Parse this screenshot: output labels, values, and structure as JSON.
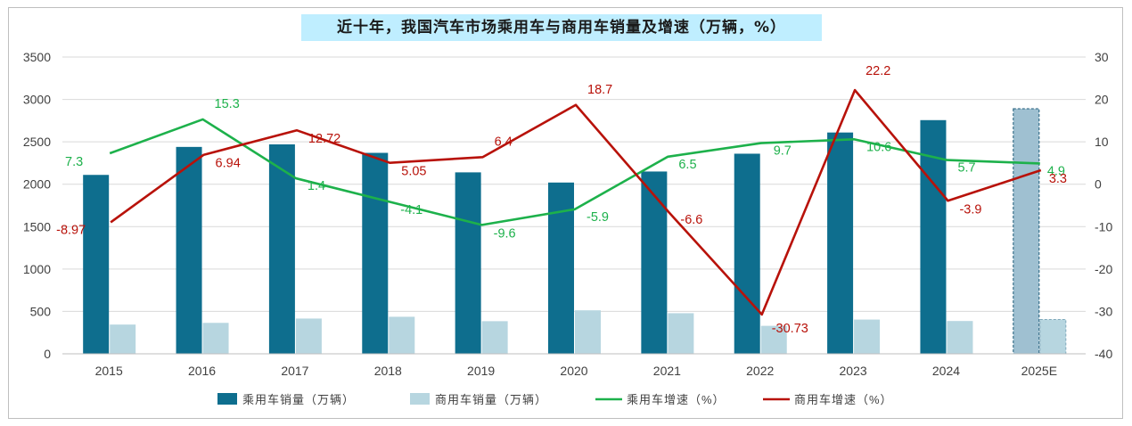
{
  "chart_data": {
    "type": "bar",
    "title": "近十年，我国汽车市场乘用车与商用车销量及增速（万辆，%）",
    "categories": [
      "2015",
      "2016",
      "2017",
      "2018",
      "2019",
      "2020",
      "2021",
      "2022",
      "2023",
      "2024",
      "2025E"
    ],
    "left_axis": {
      "min": 0,
      "max": 3500,
      "step": 500,
      "ticks": [
        "0",
        "500",
        "1000",
        "1500",
        "2000",
        "2500",
        "3000",
        "3500"
      ]
    },
    "right_axis": {
      "min": -40,
      "max": 30,
      "step": 10,
      "ticks": [
        "-40",
        "-30",
        "-20",
        "-10",
        "0",
        "10",
        "20",
        "30"
      ]
    },
    "series": [
      {
        "name": "乘用车销量（万辆）",
        "type": "bar",
        "axis": "left",
        "color": "#0e6e8e",
        "values": [
          2110,
          2440,
          2470,
          2370,
          2140,
          2020,
          2150,
          2360,
          2610,
          2756,
          2890
        ]
      },
      {
        "name": "商用车销量（万辆）",
        "type": "bar",
        "axis": "left",
        "color": "#b7d6e0",
        "values": [
          345,
          365,
          416,
          437,
          385,
          513,
          479,
          330,
          404,
          387,
          405
        ]
      },
      {
        "name": "乘用车增速（%）",
        "type": "line",
        "axis": "right",
        "color": "#1db14b",
        "values": [
          7.3,
          15.3,
          1.4,
          -4.1,
          -9.6,
          -5.9,
          6.5,
          9.7,
          10.6,
          5.7,
          4.9
        ],
        "labels": [
          "7.3",
          "15.3",
          "1.4",
          "-4.1",
          "-9.6",
          "-5.9",
          "6.5",
          "9.7",
          "10.6",
          "5.7",
          "4.9"
        ]
      },
      {
        "name": "商用车增速（%）",
        "type": "line",
        "axis": "right",
        "color": "#b8120a",
        "values": [
          -8.97,
          6.94,
          12.72,
          5.05,
          6.4,
          18.7,
          -6.6,
          -30.73,
          22.2,
          -3.9,
          3.3
        ],
        "labels": [
          "-8.97",
          "6.94",
          "12.72",
          "5.05",
          "6.4",
          "18.7",
          "-6.6",
          "-30.73",
          "22.2",
          "-3.9",
          "3.3"
        ]
      }
    ],
    "estimate_category": "2025E",
    "estimate_bar_color": "#9fc0d1",
    "legend_position": "bottom",
    "grid": true
  }
}
